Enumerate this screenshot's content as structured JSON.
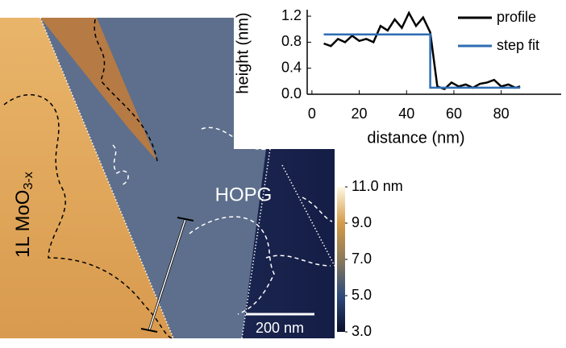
{
  "chart_data": [
    {
      "type": "line",
      "ylabel": "height (nm)",
      "xlabel": "distance (nm)",
      "xlim": [
        -2,
        90
      ],
      "xticks": [
        0,
        20,
        40,
        60,
        80
      ],
      "ylim": [
        0,
        1.3
      ],
      "yticks": [
        {
          "value": 0,
          "label": "0.0"
        },
        0.4,
        0.8,
        1.2
      ],
      "legend": "upper right",
      "series": [
        {
          "name": "profile",
          "color": "#000000",
          "x": [
            5,
            8,
            11,
            14,
            17,
            20,
            23,
            26,
            29,
            32,
            35,
            38,
            41,
            44,
            47,
            50,
            53,
            56,
            59,
            62,
            65,
            68,
            71,
            74,
            77,
            80,
            83,
            86,
            88
          ],
          "values": [
            0.78,
            0.74,
            0.85,
            0.8,
            0.9,
            0.82,
            0.85,
            0.8,
            1.05,
            0.98,
            1.15,
            1.02,
            1.25,
            1.05,
            1.18,
            0.95,
            0.12,
            0.08,
            0.18,
            0.12,
            0.15,
            0.1,
            0.16,
            0.18,
            0.22,
            0.12,
            0.15,
            0.1,
            0.12
          ]
        },
        {
          "name": "step fit",
          "color": "#2e6db4",
          "x": [
            5,
            50,
            50,
            88
          ],
          "values": [
            0.92,
            0.92,
            0.1,
            0.1
          ]
        }
      ]
    },
    {
      "type": "colorbar",
      "ylim": [
        3,
        11
      ],
      "yticks": [
        {
          "value": 11,
          "label": "11.0 nm"
        },
        {
          "value": 9,
          "label": "9.0"
        },
        {
          "value": 7,
          "label": "7.0"
        },
        {
          "value": 5,
          "label": "5.0"
        },
        {
          "value": 3,
          "label": "3.0"
        }
      ],
      "colors": [
        "#0b0f2a",
        "#2f4a7c",
        "#8a7a5a",
        "#d59a48",
        "#fff8e6"
      ]
    }
  ],
  "image": {
    "material_label": "1L MoO",
    "material_subscript": "3-x",
    "substrate_label": "HOPG",
    "scale_bar": "200 nm"
  }
}
